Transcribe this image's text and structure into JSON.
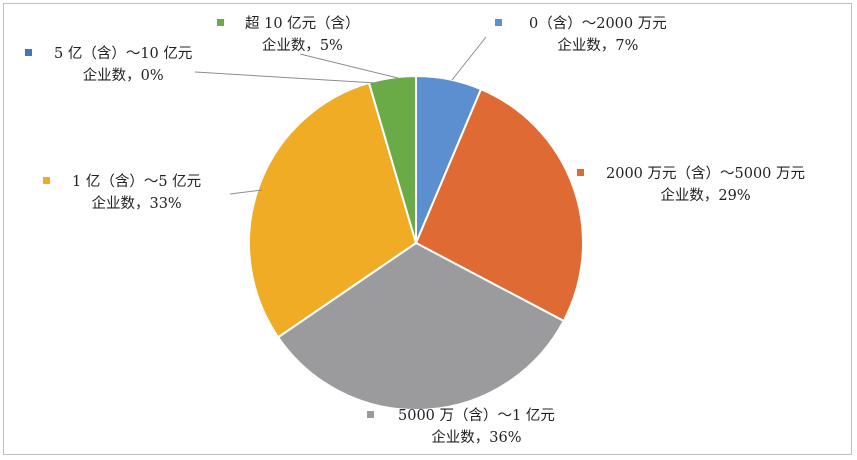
{
  "chart_data": {
    "type": "pie",
    "title": "",
    "series": [
      {
        "slices": [
          {
            "category": "0（含）～2000 万元",
            "label": "企业数，7%",
            "value": 7,
            "color": "#5b8fcf"
          },
          {
            "category": "2000 万元（含）～5000 万元",
            "label": "企业数，29%",
            "value": 29,
            "color": "#e06a34"
          },
          {
            "category": "5000 万（含）～1 亿元",
            "label": "企业数，36%",
            "value": 36,
            "color": "#9b9b9e"
          },
          {
            "category": "1 亿（含）～5 亿元",
            "label": "企业数，33%",
            "value": 33,
            "color": "#f0ac25"
          },
          {
            "category": "5 亿（含）～10 亿元",
            "label": "企业数，0%",
            "value": 0,
            "color": "#4472c4"
          },
          {
            "category": "超 10 亿元（含）",
            "label": "企业数，5%",
            "value": 5,
            "color": "#6aab48"
          }
        ]
      }
    ],
    "start_angle": "12 o'clock",
    "direction": "clockwise",
    "legend": "none"
  }
}
